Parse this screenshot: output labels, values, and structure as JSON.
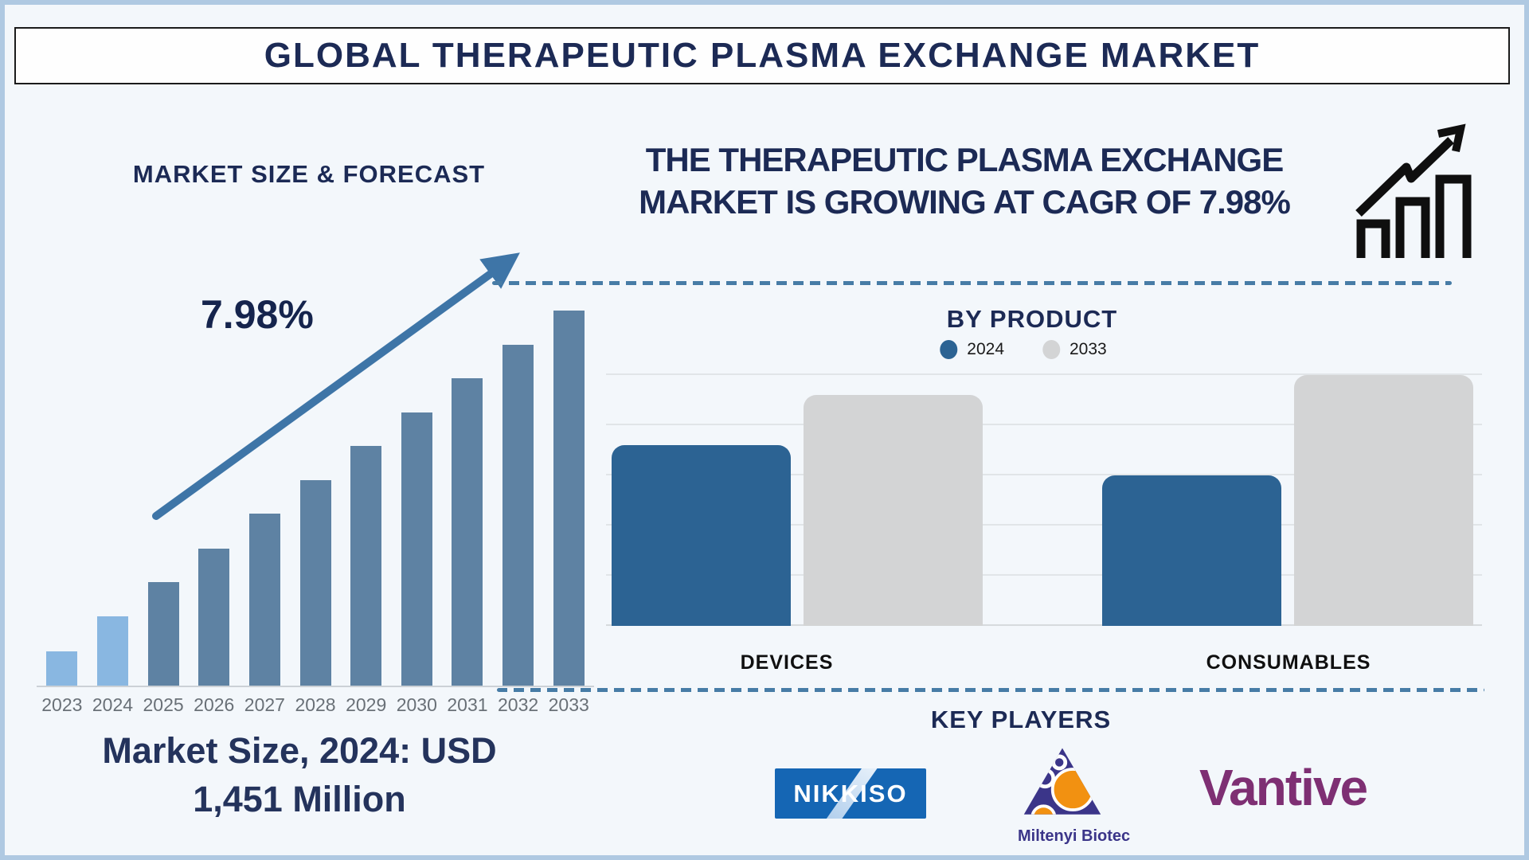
{
  "page": {
    "title": "GLOBAL THERAPEUTIC PLASMA EXCHANGE MARKET",
    "background_color": "#f3f7fb",
    "border_color": "#afc9e2",
    "navy_color": "#1c2a55"
  },
  "left_section": {
    "heading": "MARKET SIZE & FORECAST",
    "cagr_label": "7.98%",
    "caption_line1": "Market Size, 2024: USD",
    "caption_line2": "1,451 Million",
    "arrow_color": "#3e75a7"
  },
  "right_section": {
    "headline_line1": "THE THERAPEUTIC PLASMA EXCHANGE",
    "headline_line2": "MARKET IS GROWING AT CAGR OF 7.98%",
    "by_product_title": "BY PRODUCT",
    "key_players_title": "KEY PLAYERS",
    "players": [
      {
        "name": "NIKKISO",
        "wordmark_color": "#ffffff",
        "bg_color": "#1566b4"
      },
      {
        "name": "Miltenyi Biotec",
        "text_color": "#3b3589",
        "triangle_color": "#3b3589",
        "accent_color": "#f29111"
      },
      {
        "name": "Vantive",
        "text_color": "#7e2f73"
      }
    ],
    "divider_color": "#477ca6"
  },
  "chart_data": [
    {
      "type": "bar",
      "title": "MARKET SIZE & FORECAST",
      "categories": [
        "2023",
        "2024",
        "2025",
        "2026",
        "2027",
        "2028",
        "2029",
        "2030",
        "2031",
        "2032",
        "2033"
      ],
      "values_relative_pct": [
        9.1,
        18.5,
        27.6,
        36.5,
        45.9,
        54.8,
        63.9,
        72.8,
        81.9,
        90.9,
        100
      ],
      "value_note": "stylized bars, no numeric y-axis shown; heights are % of tallest (2033) bar",
      "highlight_categories": [
        "2023",
        "2024"
      ],
      "bar_color": "#5e82a3",
      "highlight_bar_color": "#89b7e1",
      "annotations": [
        "7.98%",
        "Market Size, 2024: USD 1,451 Million"
      ],
      "xlabel": "",
      "ylabel": "",
      "grid": false
    },
    {
      "type": "bar",
      "title": "BY PRODUCT",
      "categories": [
        "DEVICES",
        "CONSUMABLES"
      ],
      "series": [
        {
          "name": "2024",
          "color": "#2c6393",
          "values": [
            3.6,
            3.0
          ]
        },
        {
          "name": "2033",
          "color": "#d3d4d5",
          "values": [
            4.6,
            5.0
          ]
        }
      ],
      "ylim": [
        0,
        5
      ],
      "gridline_count": 6,
      "grid": true,
      "legend_position": "top",
      "value_note": "no numeric axis labels shown; values estimated in gridline units"
    }
  ]
}
